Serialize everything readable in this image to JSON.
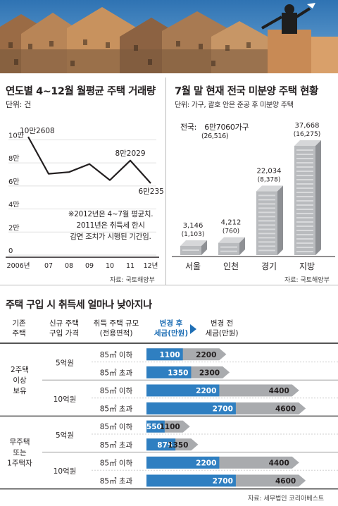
{
  "line_panel": {
    "title": "연도별 4~12월 월평균 주택 거래량",
    "unit": "단위: 건",
    "note_lines": [
      "※2012년은 4~7월 평균치.",
      "2011년은 취득세 한시",
      "감면 조치가 시행된 기간임."
    ],
    "source": "자료: 국토해양부",
    "labels": {
      "first": "10만2608",
      "peak": "8만2029",
      "last": "6만2355"
    }
  },
  "bar_panel": {
    "title": "7월 말 현재 전국 미분양 주택 현황",
    "unit": "단위: 가구, 괄호 안은 준공 후 미분양 주택",
    "national_label": "전국:",
    "national_value": "6만7060가구",
    "national_sub": "(26,516)",
    "source": "자료: 국토해양부"
  },
  "table": {
    "title": "주택 구입 시 취득세 얼마나 낮아지나",
    "headers": [
      "기존\n주택",
      "신규 주택\n구입 가격",
      "취득 주택 규모\n(전용면적)",
      "변경 후\n세금(만원)",
      "변경 전\n세금(만원)"
    ],
    "groups": [
      {
        "label": "2주택\n이상\n보유",
        "prices": [
          {
            "label": "5억원",
            "rows": [
              {
                "size": "85㎡ 이하",
                "after": 1100,
                "before": 2200
              },
              {
                "size": "85㎡ 초과",
                "after": 1350,
                "before": 2300
              }
            ]
          },
          {
            "label": "10억원",
            "rows": [
              {
                "size": "85㎡ 이하",
                "after": 2200,
                "before": 4400
              },
              {
                "size": "85㎡ 초과",
                "after": 2700,
                "before": 4600
              }
            ]
          }
        ]
      },
      {
        "label": "무주택\n또는\n1주택자",
        "prices": [
          {
            "label": "5억원",
            "rows": [
              {
                "size": "85㎡ 이하",
                "after": 550,
                "before": 1100
              },
              {
                "size": "85㎡ 초과",
                "after": 875,
                "before": 1350
              }
            ]
          },
          {
            "label": "10억원",
            "rows": [
              {
                "size": "85㎡ 이하",
                "after": 2200,
                "before": 4400
              },
              {
                "size": "85㎡ 초과",
                "after": 2700,
                "before": 4600
              }
            ]
          }
        ]
      }
    ],
    "source": "자료: 세무법인 코리아베스트"
  },
  "colors": {
    "after": "#2f7fc1",
    "before": "#a9abae",
    "accent_blue": "#1f6fb5",
    "sky": "#4e94c9"
  },
  "chart_data": [
    {
      "type": "line",
      "title": "연도별 4~12월 월평균 주택 거래량",
      "ylabel": "단위: 건",
      "x": [
        "2006년",
        "07",
        "08",
        "09",
        "10",
        "11",
        "12년"
      ],
      "values": [
        102608,
        70500,
        72000,
        79000,
        65000,
        82029,
        62355
      ],
      "yticks": [
        "0",
        "2만",
        "4만",
        "6만",
        "8만",
        "10만"
      ],
      "ylim": [
        0,
        110000
      ]
    },
    {
      "type": "bar",
      "title": "7월 말 현재 전국 미분양 주택 현황",
      "categories": [
        "서울",
        "인천",
        "경기",
        "지방"
      ],
      "series": [
        {
          "values": [
            3146,
            4212,
            22034,
            37668
          ]
        },
        {
          "values": [
            1103,
            760,
            8378,
            16275
          ]
        }
      ],
      "value_labels": [
        "3,146",
        "4,212",
        "22,034",
        "37,668"
      ],
      "sub_labels": [
        "(1,103)",
        "(760)",
        "(8,378)",
        "(16,275)"
      ]
    }
  ]
}
